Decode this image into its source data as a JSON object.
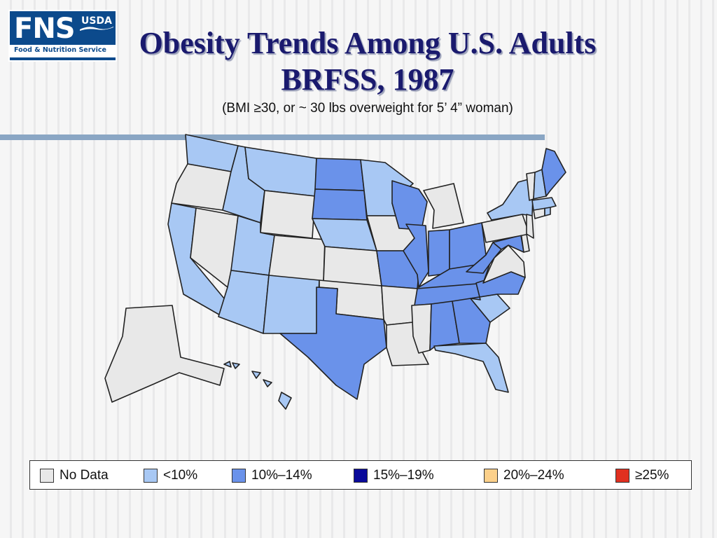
{
  "logo": {
    "fns": "FNS",
    "usda": "USDA",
    "sub": "Food & Nutrition Service"
  },
  "title": {
    "line1": "Obesity Trends Among U.S. Adults",
    "line2": "BRFSS, 1987"
  },
  "subtitle": "(BMI ≥30, or ~ 30 lbs overweight for 5’ 4” woman)",
  "colors": {
    "nodata": "#e8e8e8",
    "lt10": "#a8c8f4",
    "c10_14": "#6a92ea",
    "c15_19": "#0a0a9a",
    "c20_24": "#fcd08a",
    "ge25": "#e03020",
    "border": "#222222"
  },
  "legend": [
    {
      "label": "No Data",
      "color": "#e8e8e8"
    },
    {
      "label": "<10%",
      "color": "#a8c8f4"
    },
    {
      "label": "10%–14%",
      "color": "#6a92ea"
    },
    {
      "label": "15%–19%",
      "color": "#0a0a9a"
    },
    {
      "label": "20%–24%",
      "color": "#fcd08a"
    },
    {
      "label": "≥25%",
      "color": "#e03020"
    }
  ],
  "states": {
    "WA": "lt10",
    "OR": "nodata",
    "CA": "lt10",
    "NV": "nodata",
    "ID": "lt10",
    "MT": "lt10",
    "WY": "nodata",
    "UT": "lt10",
    "AZ": "lt10",
    "CO": "nodata",
    "NM": "lt10",
    "ND": "c10_14",
    "SD": "c10_14",
    "NE": "lt10",
    "KS": "nodata",
    "OK": "nodata",
    "TX": "c10_14",
    "MN": "lt10",
    "IA": "nodata",
    "MO": "c10_14",
    "AR": "nodata",
    "LA": "nodata",
    "WI": "c10_14",
    "IL": "c10_14",
    "MI": "nodata",
    "IN": "c10_14",
    "OH": "c10_14",
    "KY": "c10_14",
    "TN": "c10_14",
    "MS": "nodata",
    "AL": "c10_14",
    "GA": "c10_14",
    "FL": "lt10",
    "SC": "lt10",
    "NC": "c10_14",
    "VA": "nodata",
    "WV": "c10_14",
    "MD": "c10_14",
    "DE": "nodata",
    "PA": "nodata",
    "NY": "lt10",
    "NJ": "nodata",
    "CT": "nodata",
    "RI": "lt10",
    "MA": "lt10",
    "VT": "nodata",
    "NH": "lt10",
    "ME": "c10_14",
    "AK": "nodata",
    "HI": "lt10"
  }
}
